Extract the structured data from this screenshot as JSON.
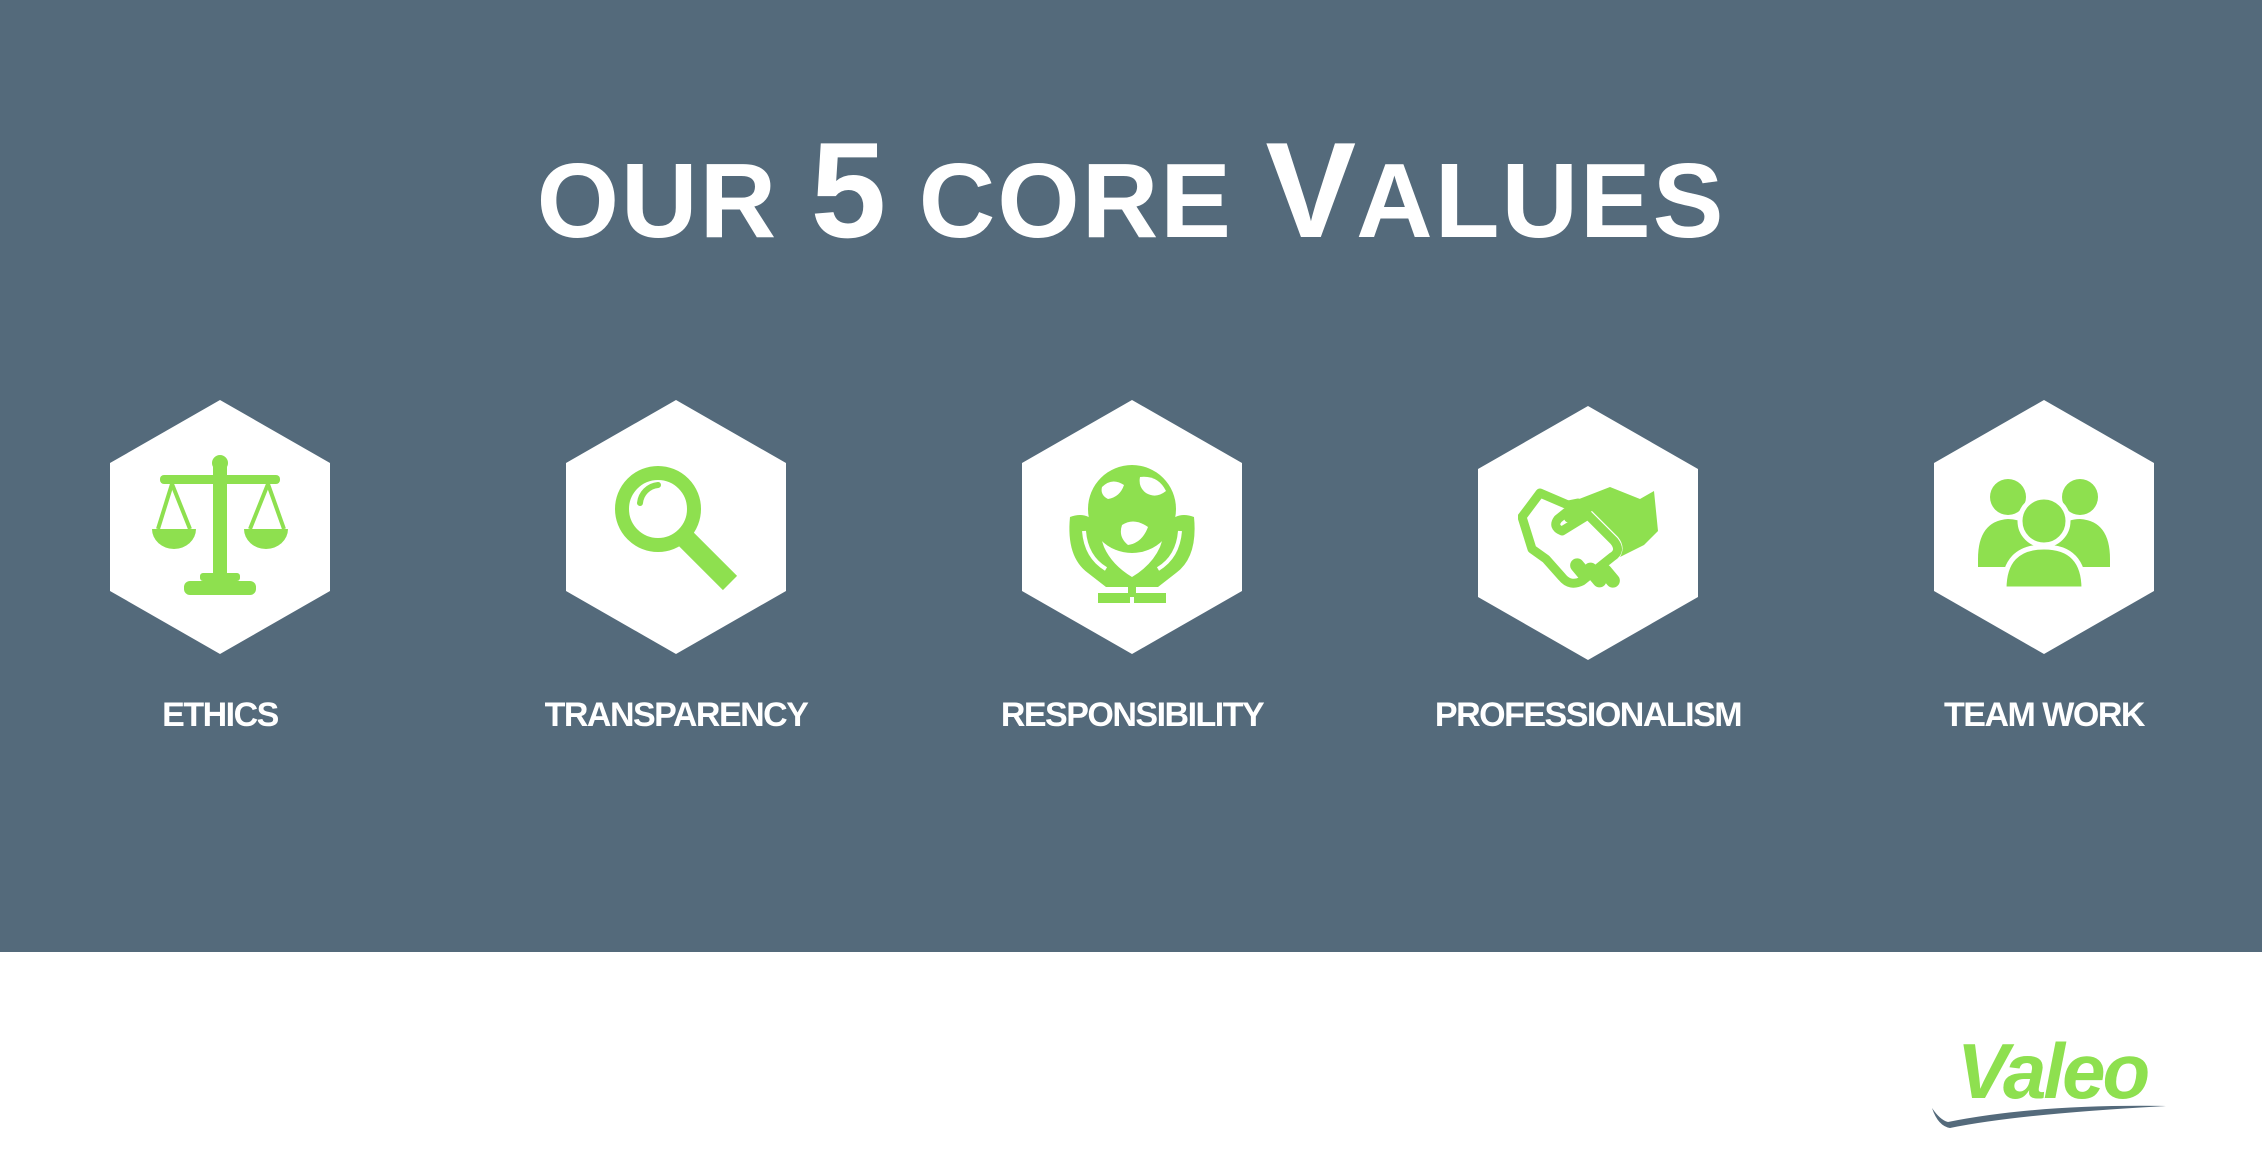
{
  "title": {
    "part1": "our",
    "part2": "5",
    "part3": "core",
    "part4": "V",
    "part5": "alues"
  },
  "colors": {
    "banner": "#546a7b",
    "accent": "#8ee04f",
    "text": "#ffffff",
    "logo_swoosh": "#546a7b"
  },
  "values": [
    {
      "label": "ETHICS",
      "icon": "scales-icon"
    },
    {
      "label": "TRANSPARENCY",
      "icon": "magnifier-icon"
    },
    {
      "label": "RESPONSIBILITY",
      "icon": "globe-hands-icon"
    },
    {
      "label": "PROFESSIONALISM",
      "icon": "handshake-icon"
    },
    {
      "label": "TEAM WORK",
      "icon": "team-icon"
    }
  ],
  "logo": {
    "text": "Valeo"
  }
}
